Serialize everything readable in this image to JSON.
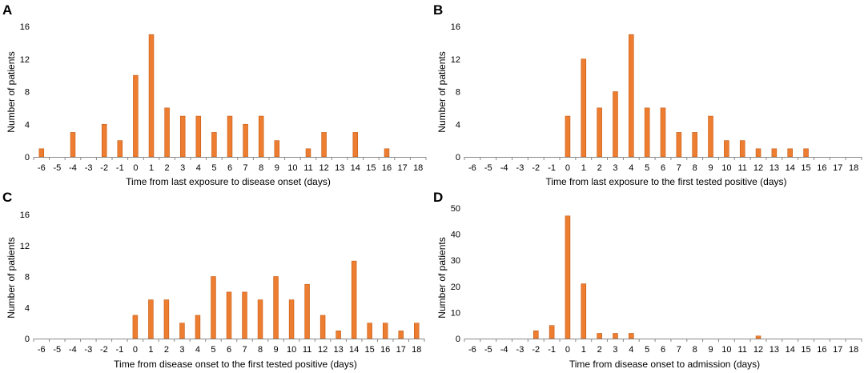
{
  "figure": {
    "colors": {
      "bar": "#ED7D31",
      "bar_edge": "#C55A11",
      "axis": "#888888"
    }
  },
  "chart_data": [
    {
      "panel": "A",
      "type": "bar",
      "categories": [
        "-6",
        "-5",
        "-4",
        "-3",
        "-2",
        "-1",
        "0",
        "1",
        "2",
        "3",
        "4",
        "5",
        "6",
        "7",
        "8",
        "9",
        "10",
        "11",
        "12",
        "13",
        "14",
        "15",
        "16",
        "17",
        "18"
      ],
      "values": [
        1,
        0,
        3,
        0,
        4,
        2,
        10,
        15,
        6,
        5,
        5,
        3,
        5,
        4,
        5,
        2,
        0,
        1,
        3,
        0,
        3,
        0,
        1,
        0,
        0
      ],
      "xlabel": "Time from last exposure to disease onset (days)",
      "ylabel": "Number of patients",
      "ylim": [
        0,
        16
      ],
      "yticks": [
        "0",
        "4",
        "8",
        "12",
        "16"
      ]
    },
    {
      "panel": "B",
      "type": "bar",
      "categories": [
        "-6",
        "-5",
        "-4",
        "-3",
        "-2",
        "-1",
        "0",
        "1",
        "2",
        "3",
        "4",
        "5",
        "6",
        "7",
        "8",
        "9",
        "10",
        "11",
        "12",
        "13",
        "14",
        "15",
        "16",
        "17",
        "18"
      ],
      "values": [
        0,
        0,
        0,
        0,
        0,
        0,
        5,
        12,
        6,
        8,
        15,
        6,
        6,
        3,
        3,
        5,
        2,
        2,
        1,
        1,
        1,
        1,
        0,
        0,
        0
      ],
      "xlabel": "Time from last exposure  to the first tested positive (days)",
      "ylabel": "Number of patients",
      "ylim": [
        0,
        16
      ],
      "yticks": [
        "0",
        "4",
        "8",
        "12",
        "16"
      ]
    },
    {
      "panel": "C",
      "type": "bar",
      "categories": [
        "-6",
        "-5",
        "-4",
        "-3",
        "-2",
        "-1",
        "0",
        "1",
        "2",
        "3",
        "4",
        "5",
        "6",
        "7",
        "8",
        "9",
        "10",
        "11",
        "12",
        "13",
        "14",
        "15",
        "16",
        "17",
        "18"
      ],
      "values": [
        0,
        0,
        0,
        0,
        0,
        0,
        3,
        5,
        5,
        2,
        3,
        8,
        6,
        6,
        5,
        8,
        5,
        7,
        3,
        1,
        10,
        2,
        2,
        1,
        2
      ],
      "xlabel": "Time from disease onset to the first tested positive (days)",
      "ylabel": "Number of patients",
      "ylim": [
        0,
        16
      ],
      "yticks": [
        "0",
        "4",
        "8",
        "12",
        "16"
      ]
    },
    {
      "panel": "D",
      "type": "bar",
      "categories": [
        "-6",
        "-5",
        "-4",
        "-3",
        "-2",
        "-1",
        "0",
        "1",
        "2",
        "3",
        "4",
        "5",
        "6",
        "7",
        "8",
        "9",
        "10",
        "11",
        "12",
        "13",
        "14",
        "15",
        "16",
        "17",
        "18"
      ],
      "values": [
        0,
        0,
        0,
        0,
        3,
        5,
        47,
        21,
        2,
        2,
        2,
        0,
        0,
        0,
        0,
        0,
        0,
        0,
        1,
        0,
        0,
        0,
        0,
        0,
        0
      ],
      "xlabel": "Time from disease onset to admission (days)",
      "ylabel": "Number of patients",
      "ylim": [
        0,
        50
      ],
      "yticks": [
        "0",
        "10",
        "20",
        "30",
        "40",
        "50"
      ]
    }
  ]
}
